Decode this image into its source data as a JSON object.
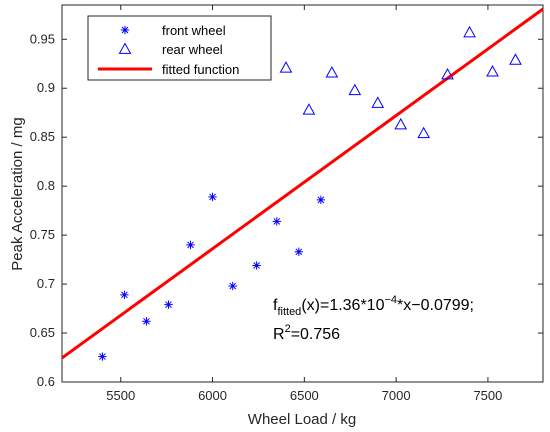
{
  "chart_data": {
    "type": "scatter",
    "xlabel": "Wheel Load / kg",
    "ylabel": "Peak Acceleration / mg",
    "xlim": [
      5180,
      7800
    ],
    "ylim": [
      0.6,
      0.985
    ],
    "xticks": [
      5500,
      6000,
      6500,
      7000,
      7500
    ],
    "yticks": [
      0.6,
      0.65,
      0.7,
      0.75,
      0.8,
      0.85,
      0.9,
      0.95
    ],
    "ytick_labels": [
      "0.6",
      "0.65",
      "0.7",
      "0.75",
      "0.8",
      "0.85",
      "0.9",
      "0.95"
    ],
    "grid": false,
    "legend_position": "top-left",
    "series": [
      {
        "name": "front wheel",
        "marker": "asterisk",
        "color": "#0000ff",
        "x": [
          5400,
          5520,
          5640,
          5760,
          5880,
          6000,
          6110,
          6240,
          6350,
          6470,
          6590
        ],
        "y": [
          0.626,
          0.689,
          0.662,
          0.679,
          0.74,
          0.789,
          0.698,
          0.719,
          0.764,
          0.733,
          0.786
        ]
      },
      {
        "name": "rear wheel",
        "marker": "triangle",
        "color": "#0000ff",
        "x": [
          6400,
          6525,
          6650,
          6775,
          6900,
          7025,
          7150,
          7280,
          7400,
          7525,
          7650
        ],
        "y": [
          0.921,
          0.878,
          0.916,
          0.898,
          0.885,
          0.863,
          0.854,
          0.914,
          0.957,
          0.917,
          0.929
        ]
      },
      {
        "name": "fitted function",
        "type": "line",
        "color": "#ff0000",
        "slope": 0.000136,
        "intercept": -0.0799,
        "x": [
          5180,
          7800
        ]
      }
    ],
    "annotations": {
      "fit_f": "f",
      "fit_sub": "fitted",
      "fit_mid": "(x)=1.36*10",
      "fit_exp": "−4",
      "fit_tail": "*x−0.0799;",
      "r2_r": "R",
      "r2_sup": "2",
      "r2_tail": "=0.756"
    }
  }
}
